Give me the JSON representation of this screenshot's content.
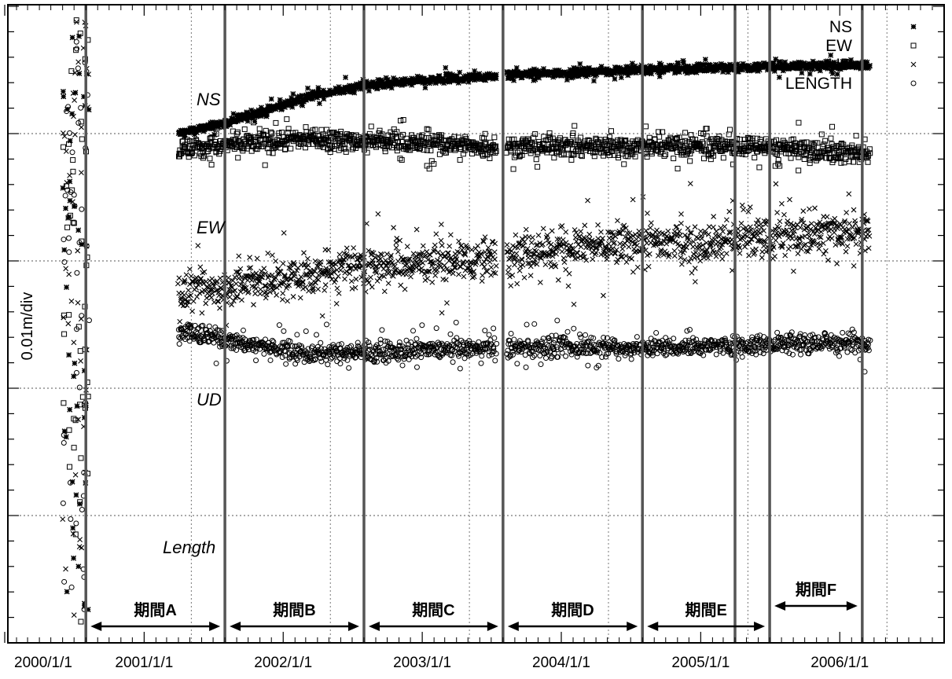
{
  "chart_data": {
    "type": "scatter",
    "ylabel": "0.01m/div",
    "x_tick_labels": [
      "2000/1/1",
      "2001/1/1",
      "2002/1/1",
      "2003/1/1",
      "2004/1/1",
      "2005/1/1",
      "2006/1/1"
    ],
    "xlim": [
      "2000/1/1",
      "2006/6/1"
    ],
    "y_tick_step_m": 0.01,
    "y_gridlines_every_n_ticks": 5,
    "grid": true,
    "legend": {
      "placement": "top-right",
      "entries": [
        {
          "label": "NS",
          "marker": "asterisk"
        },
        {
          "label": "EW",
          "marker": "square"
        },
        {
          "label": "UD",
          "marker": "cross"
        },
        {
          "label": "LENGTH",
          "marker": "circle"
        }
      ]
    },
    "series_labels": [
      "NS",
      "EW",
      "UD",
      "Length"
    ],
    "period_boundaries": [
      "2000/8/1",
      "2001/8/1",
      "2002/8/1",
      "2003/8/1",
      "2004/8/1",
      "2005/4/1",
      "2005/7/1",
      "2006/3/1"
    ],
    "periods": [
      {
        "label": "期間A",
        "start": "2000/8/1",
        "end": "2001/8/1"
      },
      {
        "label": "期間B",
        "start": "2001/8/1",
        "end": "2002/8/1"
      },
      {
        "label": "期間C",
        "start": "2002/8/1",
        "end": "2003/8/1"
      },
      {
        "label": "期間D",
        "start": "2003/8/1",
        "end": "2004/8/1"
      },
      {
        "label": "期間E",
        "start": "2004/8/1",
        "end": "2005/7/1"
      },
      {
        "label": "期間F",
        "start": "2005/7/1",
        "end": "2006/3/1"
      }
    ],
    "series": [
      {
        "name": "NS",
        "marker": "asterisk",
        "trend": [
          {
            "date": "2001/4/1",
            "offset_m": 0
          },
          {
            "date": "2001/8/1",
            "offset_m": 0.0008
          },
          {
            "date": "2002/3/1",
            "offset_m": 0.0028
          },
          {
            "date": "2002/8/1",
            "offset_m": 0.0038
          },
          {
            "date": "2003/7/1",
            "offset_m": 0.0045
          },
          {
            "date": "2003/8/1",
            "offset_m": 0.0046
          },
          {
            "date": "2004/8/1",
            "offset_m": 0.005
          },
          {
            "date": "2005/4/1",
            "offset_m": 0.0052
          },
          {
            "date": "2006/3/1",
            "offset_m": 0.0054
          }
        ],
        "spread_m": 0.0005
      },
      {
        "name": "EW",
        "marker": "square",
        "trend": [
          {
            "date": "2001/4/1",
            "offset_m": -0.0012
          },
          {
            "date": "2002/3/1",
            "offset_m": -0.0004
          },
          {
            "date": "2002/8/1",
            "offset_m": -0.0006
          },
          {
            "date": "2003/7/1",
            "offset_m": -0.001
          },
          {
            "date": "2004/8/1",
            "offset_m": -0.001
          },
          {
            "date": "2005/4/1",
            "offset_m": -0.001
          },
          {
            "date": "2006/3/1",
            "offset_m": -0.0016
          }
        ],
        "spread_m": 0.0013
      },
      {
        "name": "UD",
        "marker": "cross",
        "trend": [
          {
            "date": "2001/4/1",
            "offset_m": -0.0125
          },
          {
            "date": "2002/3/1",
            "offset_m": -0.0112
          },
          {
            "date": "2002/8/1",
            "offset_m": -0.0104
          },
          {
            "date": "2003/7/1",
            "offset_m": -0.0098
          },
          {
            "date": "2003/9/1",
            "offset_m": -0.0092
          },
          {
            "date": "2004/8/1",
            "offset_m": -0.0086
          },
          {
            "date": "2005/4/1",
            "offset_m": -0.0083
          },
          {
            "date": "2006/3/1",
            "offset_m": -0.0075
          }
        ],
        "spread_m": 0.0025
      },
      {
        "name": "LENGTH",
        "marker": "circle",
        "trend": [
          {
            "date": "2001/4/1",
            "offset_m": -0.0155
          },
          {
            "date": "2001/8/1",
            "offset_m": -0.0162
          },
          {
            "date": "2002/3/1",
            "offset_m": -0.0173
          },
          {
            "date": "2002/8/1",
            "offset_m": -0.0172
          },
          {
            "date": "2003/7/1",
            "offset_m": -0.0168
          },
          {
            "date": "2004/8/1",
            "offset_m": -0.0168
          },
          {
            "date": "2005/4/1",
            "offset_m": -0.0166
          },
          {
            "date": "2006/3/1",
            "offset_m": -0.0164
          }
        ],
        "spread_m": 0.0012
      }
    ]
  }
}
